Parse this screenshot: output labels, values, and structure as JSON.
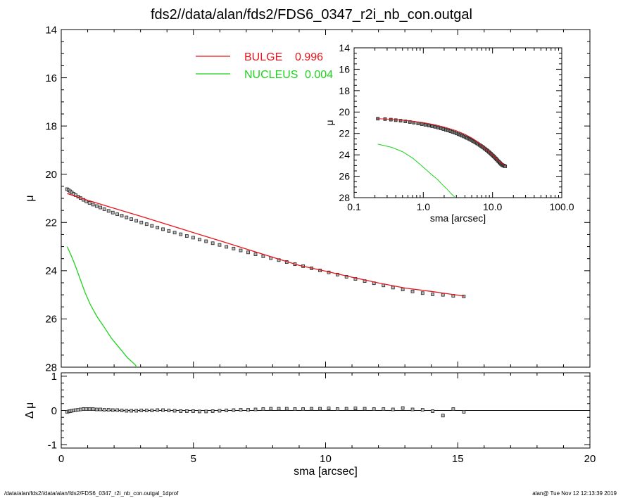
{
  "title": "fds2//data/alan/fds2/FDS6_0347_r2i_nb_con.outgal",
  "footer": {
    "left": "/data/alan/fds2//data/alan/fds2/FDS6_0347_r2i_nb_con.outgal_1dprof",
    "right": "alan@  Tue Nov 12 12:13:39 2019"
  },
  "colors": {
    "data": "#000000",
    "bulge": "#e8141b",
    "nucleus": "#1ed21e",
    "grid": "#000000"
  },
  "chart_data": [
    {
      "type": "scatter",
      "panel": "main",
      "xlabel": "",
      "ylabel": "μ",
      "xlim": [
        0,
        20
      ],
      "ylim": [
        28,
        14
      ],
      "yticks": [
        "14",
        "16",
        "18",
        "20",
        "22",
        "24",
        "26",
        "28"
      ],
      "legend": {
        "placement": "top-center",
        "entries": [
          {
            "label": "BULGE",
            "value": "0.996",
            "color": "#e8141b"
          },
          {
            "label": "NUCLEUS",
            "value": "0.004",
            "color": "#1ed21e"
          }
        ]
      },
      "series": [
        {
          "name": "data",
          "style": "squares",
          "x": [
            0.22,
            0.28,
            0.34,
            0.4,
            0.47,
            0.55,
            0.64,
            0.73,
            0.84,
            0.95,
            1.07,
            1.2,
            1.34,
            1.48,
            1.63,
            1.79,
            1.95,
            2.12,
            2.29,
            2.47,
            2.65,
            2.84,
            3.03,
            3.23,
            3.43,
            3.64,
            3.85,
            4.07,
            4.29,
            4.52,
            4.75,
            4.99,
            5.23,
            5.48,
            5.73,
            5.99,
            6.25,
            6.52,
            6.79,
            7.07,
            7.35,
            7.64,
            7.93,
            8.23,
            8.53,
            8.84,
            9.15,
            9.47,
            9.79,
            10.12,
            10.45,
            10.79,
            11.13,
            11.48,
            11.83,
            12.19,
            12.55,
            12.92,
            13.29,
            13.67,
            14.05,
            14.44,
            14.83,
            15.23
          ],
          "y": [
            20.62,
            20.66,
            20.71,
            20.76,
            20.81,
            20.87,
            20.93,
            20.99,
            21.06,
            21.13,
            21.19,
            21.26,
            21.32,
            21.38,
            21.45,
            21.52,
            21.59,
            21.66,
            21.72,
            21.79,
            21.86,
            21.93,
            22.0,
            22.07,
            22.14,
            22.21,
            22.28,
            22.35,
            22.42,
            22.49,
            22.56,
            22.63,
            22.71,
            22.78,
            22.86,
            22.93,
            23.01,
            23.08,
            23.16,
            23.24,
            23.32,
            23.4,
            23.48,
            23.56,
            23.64,
            23.73,
            23.81,
            23.9,
            23.99,
            24.07,
            24.16,
            24.25,
            24.34,
            24.43,
            24.52,
            24.61,
            24.7,
            24.78,
            24.86,
            24.93,
            24.98,
            25.0,
            25.04,
            25.07
          ]
        },
        {
          "name": "BULGE",
          "style": "line",
          "x": [
            0.22,
            1.0,
            2.0,
            3.0,
            4.0,
            5.0,
            6.0,
            7.0,
            8.0,
            9.0,
            10.0,
            11.0,
            12.0,
            13.0,
            14.0,
            15.23
          ],
          "y": [
            20.8,
            21.08,
            21.41,
            21.74,
            22.08,
            22.42,
            22.76,
            23.1,
            23.44,
            23.78,
            24.02,
            24.27,
            24.51,
            24.72,
            24.86,
            25.05
          ]
        },
        {
          "name": "NUCLEUS",
          "style": "line",
          "x": [
            0.22,
            0.35,
            0.5,
            0.7,
            0.9,
            1.1,
            1.35,
            1.6,
            1.9,
            2.2,
            2.5,
            2.8,
            2.9
          ],
          "y": [
            23.0,
            23.3,
            23.7,
            24.3,
            24.9,
            25.4,
            25.9,
            26.3,
            26.8,
            27.2,
            27.6,
            27.9,
            28.1
          ]
        }
      ]
    },
    {
      "type": "scatter",
      "panel": "residual",
      "xlabel": "sma [arcsec]",
      "ylabel": "Δ μ",
      "xlim": [
        0,
        20
      ],
      "ylim": [
        -1.1,
        1.1
      ],
      "xticks": [
        "0",
        "5",
        "10",
        "15",
        "20"
      ],
      "yticks": [
        "1",
        "0",
        "-1"
      ],
      "zero_line": true,
      "series": [
        {
          "name": "residual",
          "style": "squares",
          "x": [
            0.22,
            0.28,
            0.34,
            0.4,
            0.47,
            0.55,
            0.64,
            0.73,
            0.84,
            0.95,
            1.07,
            1.2,
            1.34,
            1.48,
            1.63,
            1.79,
            1.95,
            2.12,
            2.29,
            2.47,
            2.65,
            2.84,
            3.03,
            3.23,
            3.43,
            3.64,
            3.85,
            4.07,
            4.29,
            4.52,
            4.75,
            4.99,
            5.23,
            5.48,
            5.73,
            5.99,
            6.25,
            6.52,
            6.79,
            7.07,
            7.35,
            7.64,
            7.93,
            8.23,
            8.53,
            8.84,
            9.15,
            9.47,
            9.79,
            10.12,
            10.45,
            10.79,
            11.13,
            11.48,
            11.83,
            12.19,
            12.55,
            12.92,
            13.29,
            13.67,
            14.05,
            14.44,
            14.83,
            15.23
          ],
          "y": [
            -0.04,
            -0.03,
            -0.02,
            -0.01,
            0.0,
            0.01,
            0.02,
            0.03,
            0.04,
            0.04,
            0.04,
            0.04,
            0.03,
            0.03,
            0.02,
            0.02,
            0.01,
            0.01,
            0.0,
            -0.01,
            -0.01,
            -0.01,
            0.0,
            0.0,
            0.0,
            0.01,
            0.01,
            0.0,
            -0.01,
            -0.02,
            -0.02,
            -0.02,
            -0.03,
            -0.03,
            -0.02,
            -0.01,
            0.0,
            0.01,
            0.02,
            0.02,
            0.03,
            0.04,
            0.05,
            0.05,
            0.05,
            0.04,
            0.04,
            0.05,
            0.05,
            0.06,
            0.04,
            0.05,
            0.06,
            0.05,
            0.04,
            0.04,
            0.03,
            0.07,
            0.03,
            0.02,
            -0.02,
            -0.15,
            0.04,
            -0.04
          ]
        }
      ]
    },
    {
      "type": "scatter",
      "panel": "inset",
      "xlabel": "sma [arcsec]",
      "ylabel": "μ",
      "xscale": "log",
      "xlim": [
        0.1,
        100.0
      ],
      "ylim": [
        28,
        14
      ],
      "xticks": [
        "0.1",
        "1.0",
        "10.0",
        "100.0"
      ],
      "yticks": [
        "14",
        "16",
        "18",
        "20",
        "22",
        "24",
        "26",
        "28"
      ],
      "series": [
        {
          "name": "data",
          "style": "squares",
          "x": [
            0.22,
            0.28,
            0.34,
            0.4,
            0.47,
            0.55,
            0.64,
            0.73,
            0.84,
            0.95,
            1.07,
            1.2,
            1.34,
            1.48,
            1.63,
            1.79,
            1.95,
            2.12,
            2.29,
            2.47,
            2.65,
            2.84,
            3.03,
            3.23,
            3.43,
            3.64,
            3.85,
            4.07,
            4.29,
            4.52,
            4.75,
            4.99,
            5.23,
            5.48,
            5.73,
            5.99,
            6.25,
            6.52,
            6.79,
            7.07,
            7.35,
            7.64,
            7.93,
            8.23,
            8.53,
            8.84,
            9.15,
            9.47,
            9.79,
            10.12,
            10.45,
            10.79,
            11.13,
            11.48,
            11.83,
            12.19,
            12.55,
            12.92,
            13.29,
            13.67,
            14.05,
            14.44,
            14.83,
            15.23
          ],
          "y": [
            20.62,
            20.66,
            20.71,
            20.76,
            20.81,
            20.87,
            20.93,
            20.99,
            21.06,
            21.13,
            21.19,
            21.26,
            21.32,
            21.38,
            21.45,
            21.52,
            21.59,
            21.66,
            21.72,
            21.79,
            21.86,
            21.93,
            22.0,
            22.07,
            22.14,
            22.21,
            22.28,
            22.35,
            22.42,
            22.49,
            22.56,
            22.63,
            22.71,
            22.78,
            22.86,
            22.93,
            23.01,
            23.08,
            23.16,
            23.24,
            23.32,
            23.4,
            23.48,
            23.56,
            23.64,
            23.73,
            23.81,
            23.9,
            23.99,
            24.07,
            24.16,
            24.25,
            24.34,
            24.43,
            24.52,
            24.61,
            24.7,
            24.78,
            24.86,
            24.93,
            24.98,
            25.0,
            25.04,
            25.07
          ]
        },
        {
          "name": "BULGE",
          "style": "line",
          "x": [
            0.22,
            0.35,
            0.5,
            0.7,
            1.0,
            1.5,
            2.0,
            3.0,
            4.0,
            5.0,
            6.0,
            7.0,
            8.0,
            10.0,
            12.0,
            15.23
          ],
          "y": [
            20.62,
            20.68,
            20.75,
            20.85,
            20.98,
            21.2,
            21.4,
            21.74,
            22.08,
            22.42,
            22.76,
            23.1,
            23.44,
            24.02,
            24.51,
            25.05
          ]
        },
        {
          "name": "NUCLEUS",
          "style": "line",
          "x": [
            0.22,
            0.35,
            0.5,
            0.7,
            0.9,
            1.1,
            1.35,
            1.6,
            1.9,
            2.2,
            2.5,
            2.8,
            2.9
          ],
          "y": [
            23.0,
            23.3,
            23.7,
            24.3,
            24.9,
            25.4,
            25.9,
            26.3,
            26.8,
            27.2,
            27.6,
            27.9,
            28.1
          ]
        }
      ]
    }
  ]
}
